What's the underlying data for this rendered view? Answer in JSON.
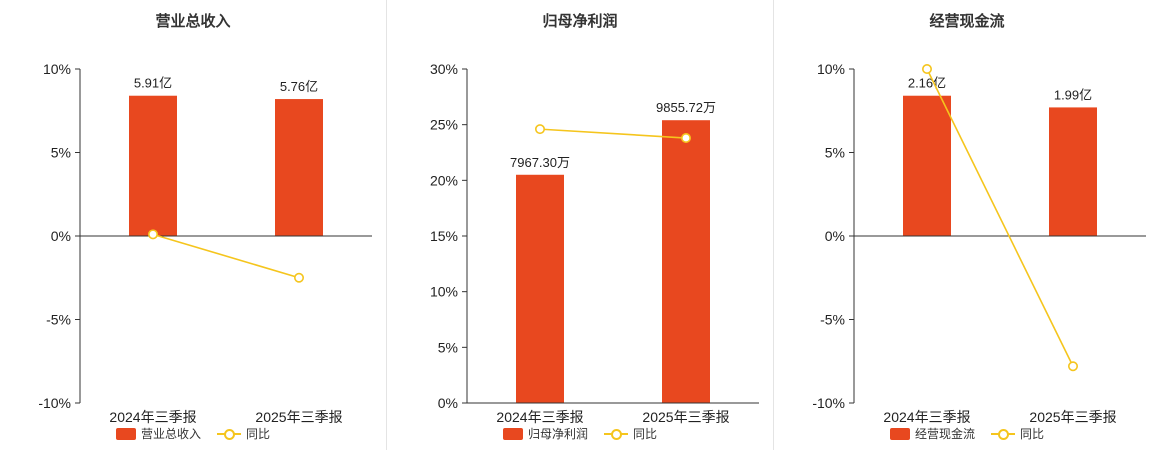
{
  "colors": {
    "bar": "#e8481f",
    "line": "#f5c51d",
    "marker_fill": "#ffffff",
    "axis": "#333333",
    "text": "#222222",
    "divider": "#e4e4e4"
  },
  "chart_data": [
    {
      "type": "bar+line",
      "title": "营业总收入",
      "categories": [
        "2024年三季报",
        "2025年三季报"
      ],
      "y_axis": {
        "min": -10,
        "max": 10,
        "unit": "%",
        "tick_labels": [
          "10%",
          "5%",
          "0%",
          "-5%",
          "-10%"
        ],
        "tick_values": [
          10,
          5,
          0,
          -5,
          -10
        ]
      },
      "series": [
        {
          "type": "bar",
          "name": "营业总收入",
          "data_labels": [
            "5.91亿",
            "5.76亿"
          ],
          "bar_top_pct": [
            8.4,
            8.2
          ]
        },
        {
          "type": "line",
          "name": "同比",
          "values_pct": [
            0.1,
            -2.5
          ]
        }
      ],
      "legend": {
        "position": "bottom",
        "entries": [
          "营业总收入",
          "同比"
        ]
      }
    },
    {
      "type": "bar+line",
      "title": "归母净利润",
      "categories": [
        "2024年三季报",
        "2025年三季报"
      ],
      "y_axis": {
        "min": 0,
        "max": 30,
        "unit": "%",
        "tick_labels": [
          "30%",
          "25%",
          "20%",
          "15%",
          "10%",
          "5%",
          "0%"
        ],
        "tick_values": [
          30,
          25,
          20,
          15,
          10,
          5,
          0
        ]
      },
      "series": [
        {
          "type": "bar",
          "name": "归母净利润",
          "data_labels": [
            "7967.30万",
            "9855.72万"
          ],
          "bar_top_pct": [
            20.5,
            25.4
          ]
        },
        {
          "type": "line",
          "name": "同比",
          "values_pct": [
            24.6,
            23.8
          ]
        }
      ],
      "legend": {
        "position": "bottom",
        "entries": [
          "归母净利润",
          "同比"
        ]
      }
    },
    {
      "type": "bar+line",
      "title": "经营现金流",
      "categories": [
        "2024年三季报",
        "2025年三季报"
      ],
      "y_axis": {
        "min": -10,
        "max": 10,
        "unit": "%",
        "tick_labels": [
          "10%",
          "5%",
          "0%",
          "-5%",
          "-10%"
        ],
        "tick_values": [
          10,
          5,
          0,
          -5,
          -10
        ]
      },
      "series": [
        {
          "type": "bar",
          "name": "经营现金流",
          "data_labels": [
            "2.16亿",
            "1.99亿"
          ],
          "bar_top_pct": [
            8.4,
            7.7
          ]
        },
        {
          "type": "line",
          "name": "同比",
          "values_pct": [
            10.0,
            -7.8
          ]
        }
      ],
      "legend": {
        "position": "bottom",
        "entries": [
          "经营现金流",
          "同比"
        ]
      }
    }
  ]
}
